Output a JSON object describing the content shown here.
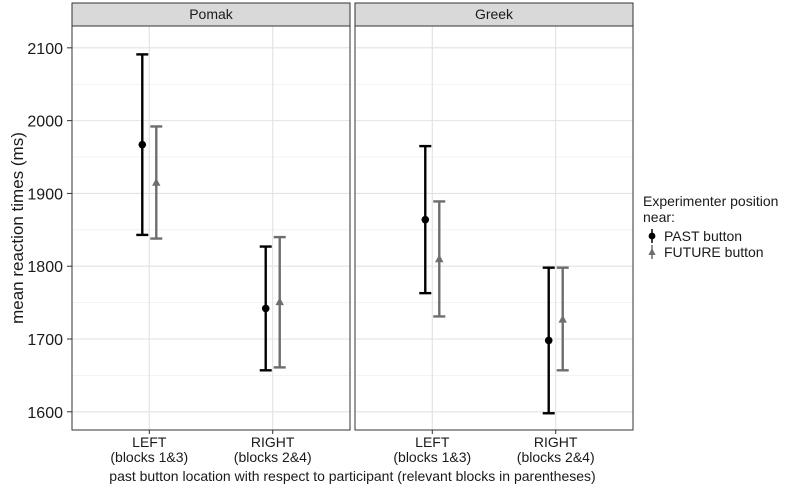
{
  "chart_data": {
    "type": "errorbar",
    "ylabel": "mean reaction times (ms)",
    "xlabel": "past button location with respect to participant (relevant blocks in parentheses)",
    "ylim": [
      1575,
      2130
    ],
    "yticks": [
      1600,
      1700,
      1800,
      1900,
      2000,
      2100
    ],
    "grid": true,
    "categories": [
      [
        "LEFT",
        "(blocks 1&3)"
      ],
      [
        "RIGHT",
        "(blocks 2&4)"
      ]
    ],
    "legend": {
      "title": [
        "Experimenter position",
        "near:"
      ],
      "placement": "right"
    },
    "series": [
      {
        "name": "PAST button",
        "color": "#000000",
        "marker": "circle"
      },
      {
        "name": "FUTURE button",
        "color": "#6e6e6e",
        "marker": "triangle"
      }
    ],
    "panels": [
      {
        "title": "Pomak",
        "points": [
          {
            "series": 0,
            "category": 0,
            "mean": 1967,
            "lower": 1843,
            "upper": 2091
          },
          {
            "series": 1,
            "category": 0,
            "mean": 1915,
            "lower": 1838,
            "upper": 1992
          },
          {
            "series": 0,
            "category": 1,
            "mean": 1742,
            "lower": 1657,
            "upper": 1827
          },
          {
            "series": 1,
            "category": 1,
            "mean": 1751,
            "lower": 1661,
            "upper": 1840
          }
        ]
      },
      {
        "title": "Greek",
        "points": [
          {
            "series": 0,
            "category": 0,
            "mean": 1864,
            "lower": 1763,
            "upper": 1965
          },
          {
            "series": 1,
            "category": 0,
            "mean": 1810,
            "lower": 1731,
            "upper": 1889
          },
          {
            "series": 0,
            "category": 1,
            "mean": 1698,
            "lower": 1598,
            "upper": 1798
          },
          {
            "series": 1,
            "category": 1,
            "mean": 1727,
            "lower": 1657,
            "upper": 1798
          }
        ]
      }
    ]
  }
}
